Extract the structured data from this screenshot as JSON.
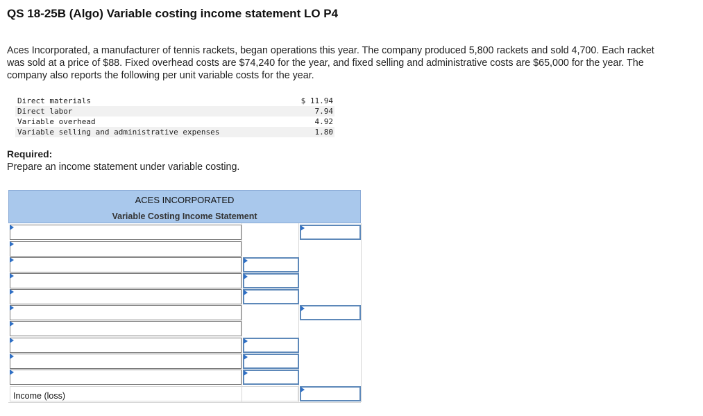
{
  "title": "QS 18-25B (Algo) Variable costing income statement LO P4",
  "description": "Aces Incorporated, a manufacturer of tennis rackets, began operations this year. The company produced 5,800 rackets and sold 4,700. Each racket was sold at a price of $88. Fixed overhead costs are $74,240 for the year, and fixed selling and administrative costs are $65,000 for the year. The company also reports the following per unit variable costs for the year.",
  "costs": [
    {
      "label": "Direct materials",
      "value": "$ 11.94"
    },
    {
      "label": "Direct labor",
      "value": "7.94"
    },
    {
      "label": "Variable overhead",
      "value": "4.92"
    },
    {
      "label": "Variable selling and administrative expenses",
      "value": "1.80"
    }
  ],
  "required_label": "Required:",
  "required_text": "Prepare an income statement under variable costing.",
  "statement": {
    "company": "ACES INCORPORATED",
    "name": "Variable Costing Income Statement",
    "income_label": "Income (loss)"
  }
}
